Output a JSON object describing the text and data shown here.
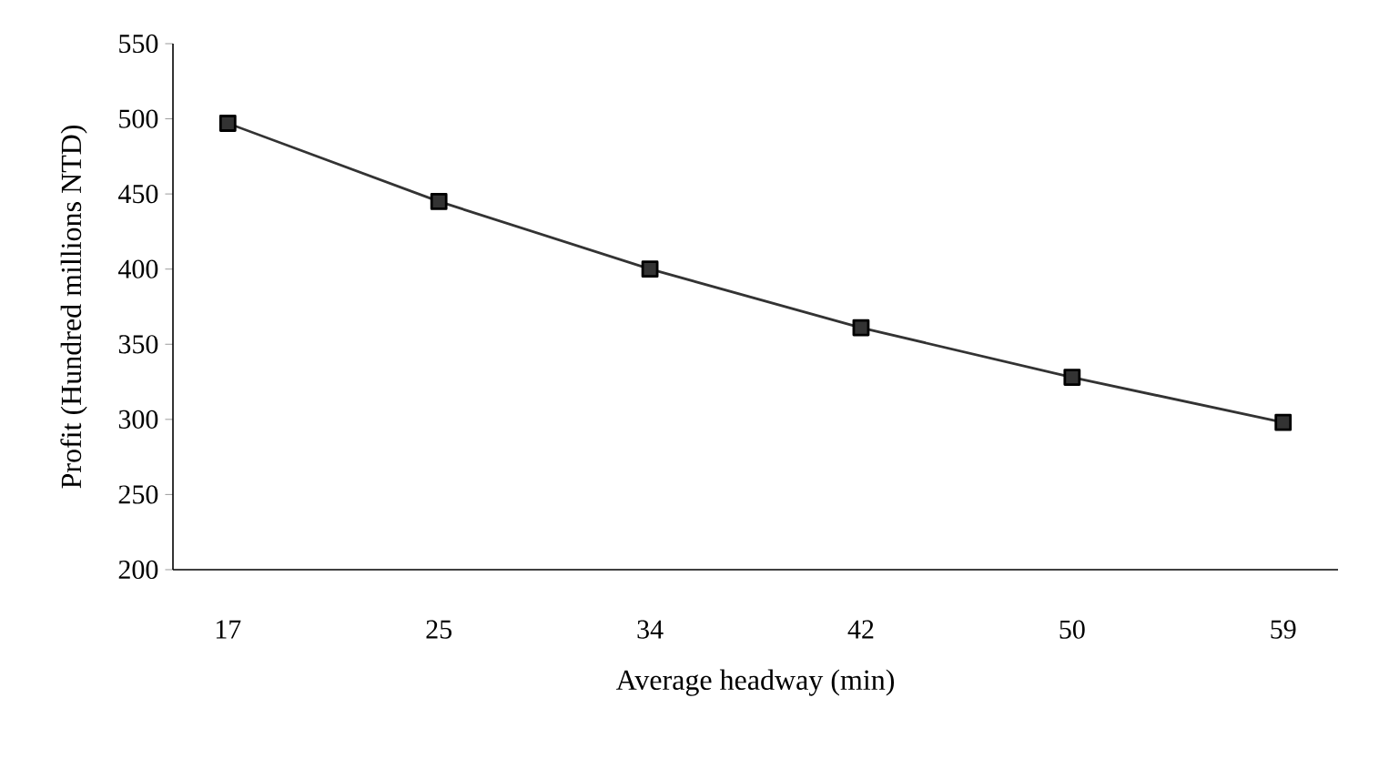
{
  "chart_data": {
    "type": "line",
    "xlabel": "Average headway (min)",
    "ylabel": "Profit (Hundred millions NTD)",
    "categories": [
      "17",
      "25",
      "34",
      "42",
      "50",
      "59"
    ],
    "series": [
      {
        "color": "#333333",
        "values": [
          497,
          445,
          400,
          361,
          328,
          298
        ]
      }
    ],
    "ylim": [
      200,
      550
    ],
    "yticks": [
      200,
      250,
      300,
      350,
      400,
      450,
      500,
      550
    ],
    "grid": false,
    "marker": "square",
    "line_style": "solid"
  }
}
